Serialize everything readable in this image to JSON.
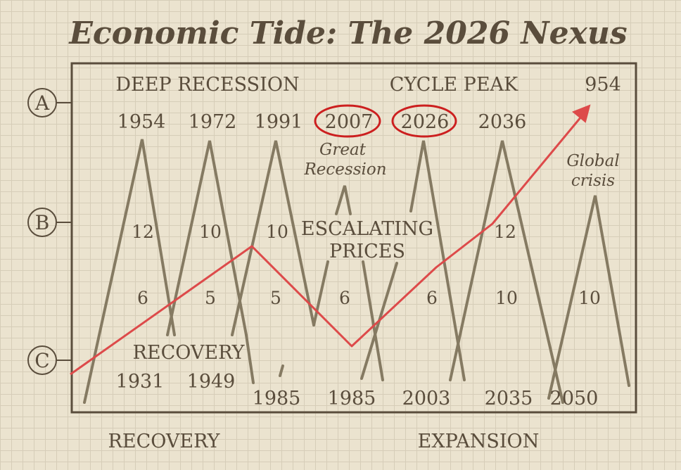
{
  "title": "Economic Tide: The 2026 Nexus",
  "markers": {
    "a": "A",
    "b": "B",
    "c": "C"
  },
  "labels": {
    "deep_recession": "DEEP RECESSION",
    "cycle_peak": "CYCLE PEAK",
    "top_right_value": "954",
    "great_recession_1": "Great",
    "great_recession_2": "Recession",
    "escalating_1": "ESCALATING",
    "escalating_2": "PRICES",
    "global_crisis_1": "Global",
    "global_crisis_2": "crisis",
    "recovery_inner": "RECOVERY",
    "recovery_bottom": "RECOVERY",
    "expansion_bottom": "EXPANSION"
  },
  "top_years": [
    "1954",
    "1972",
    "1991",
    "2007",
    "2026",
    "2036"
  ],
  "highlighted_years": [
    "2007",
    "2026"
  ],
  "middle_values": [
    "12",
    "10",
    "10",
    "12"
  ],
  "lower_values": [
    "6",
    "5",
    "5",
    "6",
    "6",
    "10",
    "10"
  ],
  "bottom_years": [
    "1931",
    "1949",
    "1985",
    "1985",
    "2003",
    "2035",
    "2050"
  ],
  "colors": {
    "ink": "#5a4d3c",
    "triangle": "#857a62",
    "trend": "#dd4a4a",
    "highlight": "#cc1f1f",
    "paper": "#ebe3cf"
  }
}
